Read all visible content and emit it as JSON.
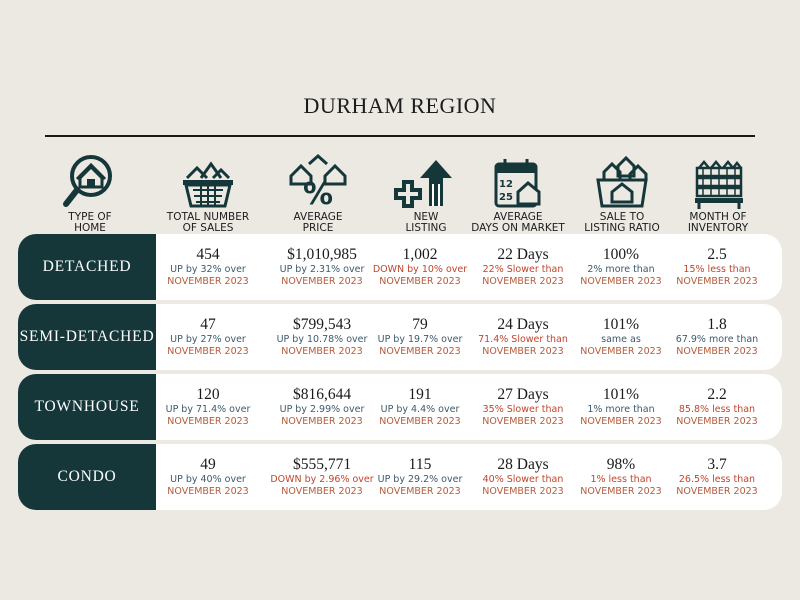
{
  "title": "DURHAM REGION",
  "colors": {
    "background": "#ece9e3",
    "label_bg": "#16373a",
    "up": "#3d5a6c",
    "down": "#c0452d",
    "month": "#b55a3a"
  },
  "headers": [
    {
      "label": "TYPE OF\nHOME",
      "icon": "house-magnifier-icon"
    },
    {
      "label": "TOTAL NUMBER\nOF SALES",
      "icon": "houses-basket-icon"
    },
    {
      "label": "AVERAGE\nPRICE",
      "icon": "percent-houses-icon"
    },
    {
      "label": "NEW\nLISTING",
      "icon": "new-listing-arrow-icon"
    },
    {
      "label": "AVERAGE\nDAYS ON MARKET",
      "icon": "calendar-house-icon"
    },
    {
      "label": "SALE TO\nLISTING RATIO",
      "icon": "houses-cart-icon"
    },
    {
      "label": "MONTH OF\nINVENTORY",
      "icon": "stacked-houses-icon"
    }
  ],
  "rows": [
    {
      "type": "DETACHED",
      "cells": [
        {
          "value": "454",
          "change": "UP by 32% over",
          "dir": "up",
          "period": "NOVEMBER 2023"
        },
        {
          "value": "$1,010,985",
          "change": "UP by 2.31% over",
          "dir": "up",
          "period": "NOVEMBER 2023"
        },
        {
          "value": "1,002",
          "change": "DOWN by 10% over",
          "dir": "down",
          "period": "NOVEMBER 2023"
        },
        {
          "value": "22 Days",
          "change": "22% Slower than",
          "dir": "down",
          "period": "NOVEMBER 2023"
        },
        {
          "value": "100%",
          "change": "2% more than",
          "dir": "up",
          "period": "NOVEMBER 2023"
        },
        {
          "value": "2.5",
          "change": "15% less than",
          "dir": "down",
          "period": "NOVEMBER 2023"
        }
      ]
    },
    {
      "type": "SEMI-DETACHED",
      "cells": [
        {
          "value": "47",
          "change": "UP by 27% over",
          "dir": "up",
          "period": "NOVEMBER 2023"
        },
        {
          "value": "$799,543",
          "change": "UP by 10.78% over",
          "dir": "up",
          "period": "NOVEMBER 2023"
        },
        {
          "value": "79",
          "change": "UP by 19.7% over",
          "dir": "up",
          "period": "NOVEMBER 2023"
        },
        {
          "value": "24 Days",
          "change": "71.4% Slower than",
          "dir": "down",
          "period": "NOVEMBER 2023"
        },
        {
          "value": "101%",
          "change": "same as",
          "dir": "neutral",
          "period": "NOVEMBER 2023"
        },
        {
          "value": "1.8",
          "change": "67.9% more than",
          "dir": "up",
          "period": "NOVEMBER 2023"
        }
      ]
    },
    {
      "type": "TOWNHOUSE",
      "cells": [
        {
          "value": "120",
          "change": "UP by 71.4% over",
          "dir": "up",
          "period": "NOVEMBER 2023"
        },
        {
          "value": "$816,644",
          "change": "UP by 2.99% over",
          "dir": "up",
          "period": "NOVEMBER 2023"
        },
        {
          "value": "191",
          "change": "UP by 4.4% over",
          "dir": "up",
          "period": "NOVEMBER 2023"
        },
        {
          "value": "27 Days",
          "change": "35% Slower than",
          "dir": "down",
          "period": "NOVEMBER 2023"
        },
        {
          "value": "101%",
          "change": "1% more than",
          "dir": "up",
          "period": "NOVEMBER 2023"
        },
        {
          "value": "2.2",
          "change": "85.8% less than",
          "dir": "down",
          "period": "NOVEMBER 2023"
        }
      ]
    },
    {
      "type": "CONDO",
      "cells": [
        {
          "value": "49",
          "change": "UP by 40% over",
          "dir": "up",
          "period": "NOVEMBER 2023"
        },
        {
          "value": "$555,771",
          "change": "DOWN by 2.96% over",
          "dir": "down",
          "period": "NOVEMBER 2023"
        },
        {
          "value": "115",
          "change": "UP by 29.2% over",
          "dir": "up",
          "period": "NOVEMBER 2023"
        },
        {
          "value": "28 Days",
          "change": "40% Slower than",
          "dir": "down",
          "period": "NOVEMBER 2023"
        },
        {
          "value": "98%",
          "change": "1% less than",
          "dir": "down",
          "period": "NOVEMBER 2023"
        },
        {
          "value": "3.7",
          "change": "26.5% less than",
          "dir": "down",
          "period": "NOVEMBER 2023"
        }
      ]
    }
  ]
}
